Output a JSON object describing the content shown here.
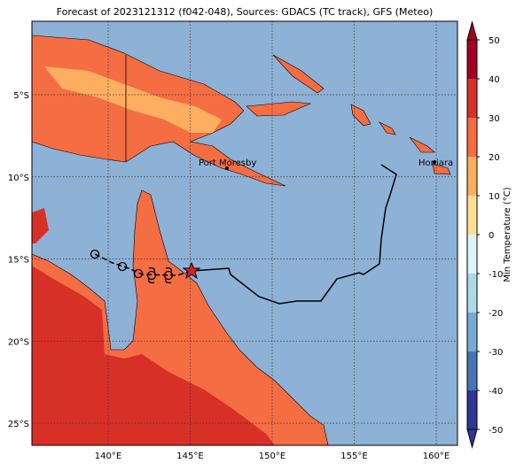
{
  "title": "Forecast of 2023121312 (f042-048), Sources: GDACS (TC track), GFS (Meteo)",
  "map": {
    "lon_ticks": [
      {
        "value": 140,
        "label": "140°E"
      },
      {
        "value": 145,
        "label": "145°E"
      },
      {
        "value": 150,
        "label": "150°E"
      },
      {
        "value": 155,
        "label": "155°E"
      },
      {
        "value": 160,
        "label": "160°E"
      }
    ],
    "lat_ticks": [
      {
        "value": -5,
        "label": "5°S"
      },
      {
        "value": -10,
        "label": "10°S"
      },
      {
        "value": -15,
        "label": "15°S"
      },
      {
        "value": -20,
        "label": "20°S"
      },
      {
        "value": -25,
        "label": "25°S"
      }
    ],
    "cities": [
      "Port Moresby",
      "Honiara"
    ]
  },
  "colorbar": {
    "label": "Min Temperature (°C)",
    "lim": [
      -50,
      50
    ],
    "ticks": [
      50,
      40,
      30,
      20,
      10,
      0,
      -10,
      -20,
      -30,
      -40,
      -50
    ],
    "colors": [
      "#313695",
      "#4575b4",
      "#74add1",
      "#abd9e9",
      "#e0f3f8",
      "#fee090",
      "#fdae61",
      "#f46d43",
      "#d73027",
      "#a50026"
    ]
  }
}
